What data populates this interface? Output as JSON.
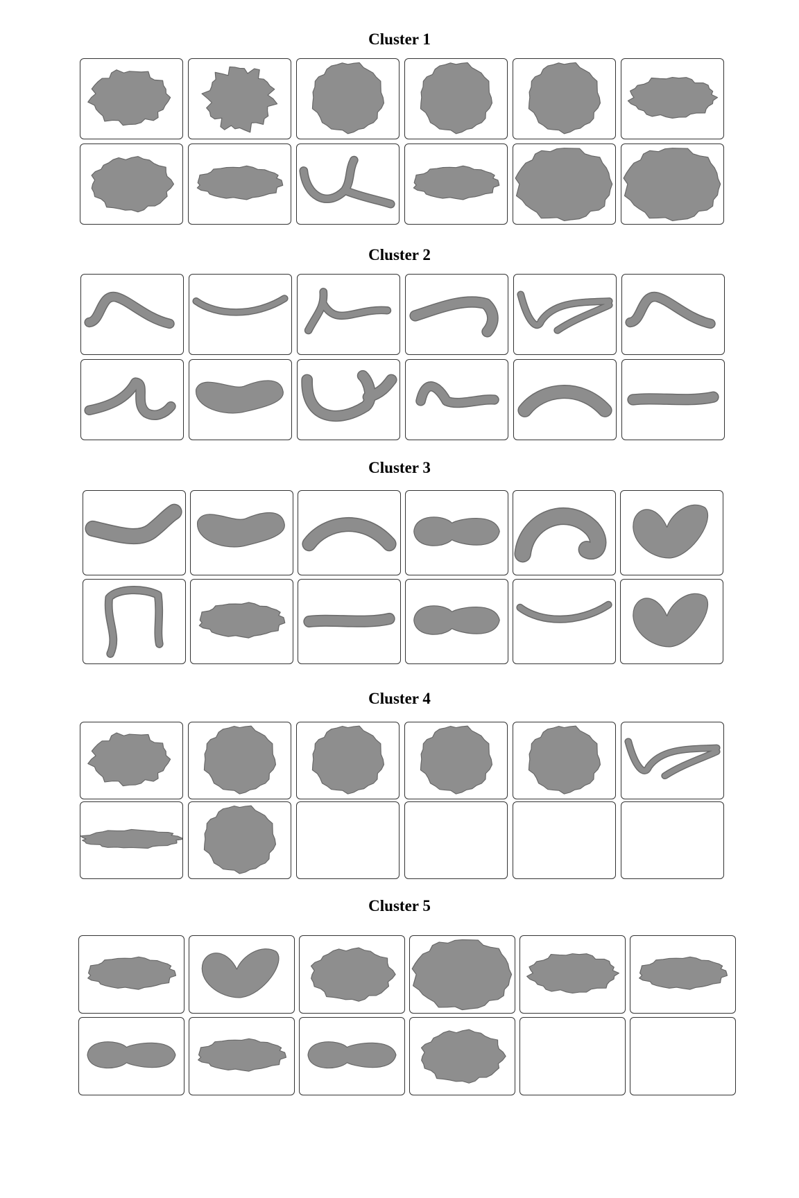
{
  "clusters": [
    {
      "title": "Cluster 1",
      "shapes": [
        "blob-lumpy",
        "blob-cluster",
        "blob-round",
        "blob-round",
        "blob-round",
        "blob-wide",
        "blob-oval",
        "blob-elongated",
        "tube-forked",
        "blob-elongated",
        "blob-large",
        "blob-large"
      ]
    },
    {
      "title": "Cluster 2",
      "shapes": [
        "tube-wave",
        "tube-arc-flat",
        "tube-branch",
        "tube-hook",
        "tube-zigzag",
        "tube-wave",
        "tube-s",
        "blob-banana",
        "tube-u",
        "tube-wave-short",
        "tube-arc",
        "tube-straight"
      ]
    },
    {
      "title": "Cluster 3",
      "shapes": [
        "tube-bent",
        "blob-banana",
        "tube-arc",
        "blob-peanut",
        "tube-curl",
        "blob-v",
        "tube-frame",
        "blob-elongated",
        "tube-straight",
        "blob-peanut",
        "tube-arc-flat",
        "blob-v"
      ]
    },
    {
      "title": "Cluster 4",
      "shapes": [
        "blob-lumpy",
        "blob-round",
        "blob-round",
        "blob-round",
        "blob-round",
        "tube-zigzag",
        "blob-rod",
        "blob-round",
        "empty",
        "empty",
        "empty",
        "empty"
      ]
    },
    {
      "title": "Cluster 5",
      "shapes": [
        "blob-elongated",
        "blob-v",
        "blob-oval",
        "blob-large",
        "blob-wide",
        "blob-elongated",
        "blob-peanut",
        "blob-elongated",
        "blob-peanut",
        "blob-oval",
        "empty",
        "empty"
      ]
    }
  ]
}
